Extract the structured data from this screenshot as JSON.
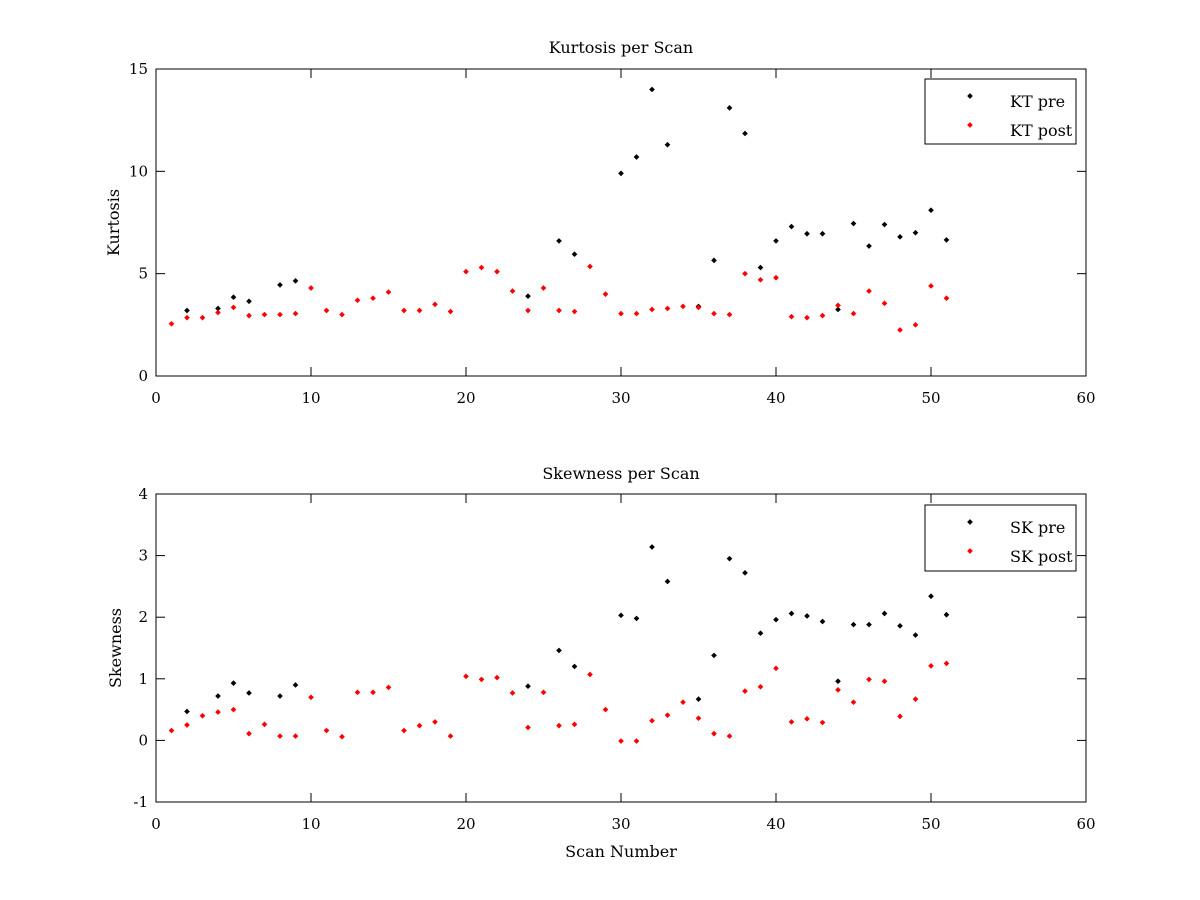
{
  "chart_data": [
    {
      "type": "scatter",
      "title": "Kurtosis per Scan",
      "xlabel": "",
      "ylabel": "Kurtosis",
      "xlim": [
        0,
        60
      ],
      "ylim": [
        0,
        15
      ],
      "xticks": [
        "0",
        "10",
        "20",
        "30",
        "40",
        "50",
        "60"
      ],
      "yticks": [
        "0",
        "5",
        "10",
        "15"
      ],
      "grid": false,
      "legend_position": "top-right",
      "series": [
        {
          "name": "KT pre",
          "color": "#000000",
          "x": [
            2,
            4,
            5,
            6,
            8,
            9,
            24,
            26,
            27,
            30,
            31,
            32,
            33,
            35,
            36,
            37,
            38,
            39,
            40,
            41,
            42,
            43,
            44,
            45,
            46,
            47,
            48,
            49,
            50,
            51
          ],
          "y": [
            3.2,
            3.3,
            3.85,
            3.65,
            4.45,
            4.65,
            3.9,
            6.6,
            5.95,
            9.9,
            10.7,
            14.0,
            11.3,
            3.4,
            5.65,
            13.1,
            11.85,
            5.3,
            6.6,
            7.3,
            6.95,
            6.95,
            3.25,
            7.45,
            6.35,
            7.4,
            6.8,
            7.0,
            8.1,
            6.65
          ]
        },
        {
          "name": "KT post",
          "color": "#ff0000",
          "x": [
            1,
            2,
            3,
            4,
            5,
            6,
            7,
            8,
            9,
            10,
            11,
            12,
            13,
            14,
            15,
            16,
            17,
            18,
            19,
            20,
            21,
            22,
            23,
            24,
            25,
            26,
            27,
            28,
            29,
            30,
            31,
            32,
            33,
            34,
            35,
            36,
            37,
            38,
            39,
            40,
            41,
            42,
            43,
            44,
            45,
            46,
            47,
            48,
            49,
            50,
            51
          ],
          "y": [
            2.55,
            2.85,
            2.85,
            3.1,
            3.35,
            2.95,
            3.0,
            3.0,
            3.05,
            4.3,
            3.2,
            3.0,
            3.7,
            3.8,
            4.1,
            3.2,
            3.2,
            3.5,
            3.15,
            5.1,
            5.3,
            5.1,
            4.15,
            3.2,
            4.3,
            3.2,
            3.15,
            5.35,
            4.0,
            3.05,
            3.05,
            3.25,
            3.3,
            3.4,
            3.35,
            3.05,
            3.0,
            5.0,
            4.7,
            4.8,
            2.9,
            2.85,
            2.95,
            3.45,
            3.05,
            4.15,
            3.55,
            2.25,
            2.5,
            4.4,
            3.8
          ]
        }
      ]
    },
    {
      "type": "scatter",
      "title": "Skewness per Scan",
      "xlabel": "Scan Number",
      "ylabel": "Skewness",
      "xlim": [
        0,
        60
      ],
      "ylim": [
        -1,
        4
      ],
      "xticks": [
        "0",
        "10",
        "20",
        "30",
        "40",
        "50",
        "60"
      ],
      "yticks": [
        "-1",
        "0",
        "1",
        "2",
        "3",
        "4"
      ],
      "grid": false,
      "legend_position": "top-right",
      "series": [
        {
          "name": "SK pre",
          "color": "#000000",
          "x": [
            2,
            4,
            5,
            6,
            8,
            9,
            24,
            26,
            27,
            30,
            31,
            32,
            33,
            35,
            36,
            37,
            38,
            39,
            40,
            41,
            42,
            43,
            44,
            45,
            46,
            47,
            48,
            49,
            50,
            51
          ],
          "y": [
            0.47,
            0.72,
            0.93,
            0.77,
            0.72,
            0.9,
            0.88,
            1.46,
            1.2,
            2.03,
            1.98,
            3.14,
            2.58,
            0.67,
            1.38,
            2.95,
            2.72,
            1.74,
            1.96,
            2.06,
            2.02,
            1.93,
            0.96,
            1.88,
            1.88,
            2.06,
            1.86,
            1.71,
            2.34,
            2.04
          ]
        },
        {
          "name": "SK post",
          "color": "#ff0000",
          "x": [
            1,
            2,
            3,
            4,
            5,
            6,
            7,
            8,
            9,
            10,
            11,
            12,
            13,
            14,
            15,
            16,
            17,
            18,
            19,
            20,
            21,
            22,
            23,
            24,
            25,
            26,
            27,
            28,
            29,
            30,
            31,
            32,
            33,
            34,
            35,
            36,
            37,
            38,
            39,
            40,
            41,
            42,
            43,
            44,
            45,
            46,
            47,
            48,
            49,
            50,
            51
          ],
          "y": [
            0.16,
            0.25,
            0.4,
            0.46,
            0.5,
            0.11,
            0.26,
            0.07,
            0.07,
            0.7,
            0.16,
            0.06,
            0.78,
            0.78,
            0.86,
            0.16,
            0.24,
            0.3,
            0.07,
            1.04,
            0.99,
            1.02,
            0.77,
            0.21,
            0.78,
            0.24,
            0.26,
            1.07,
            0.5,
            -0.01,
            -0.01,
            0.32,
            0.41,
            0.62,
            0.36,
            0.11,
            0.07,
            0.8,
            0.87,
            1.17,
            0.3,
            0.35,
            0.29,
            0.82,
            0.62,
            0.99,
            0.96,
            0.39,
            0.67,
            1.21,
            1.25
          ]
        }
      ]
    }
  ]
}
